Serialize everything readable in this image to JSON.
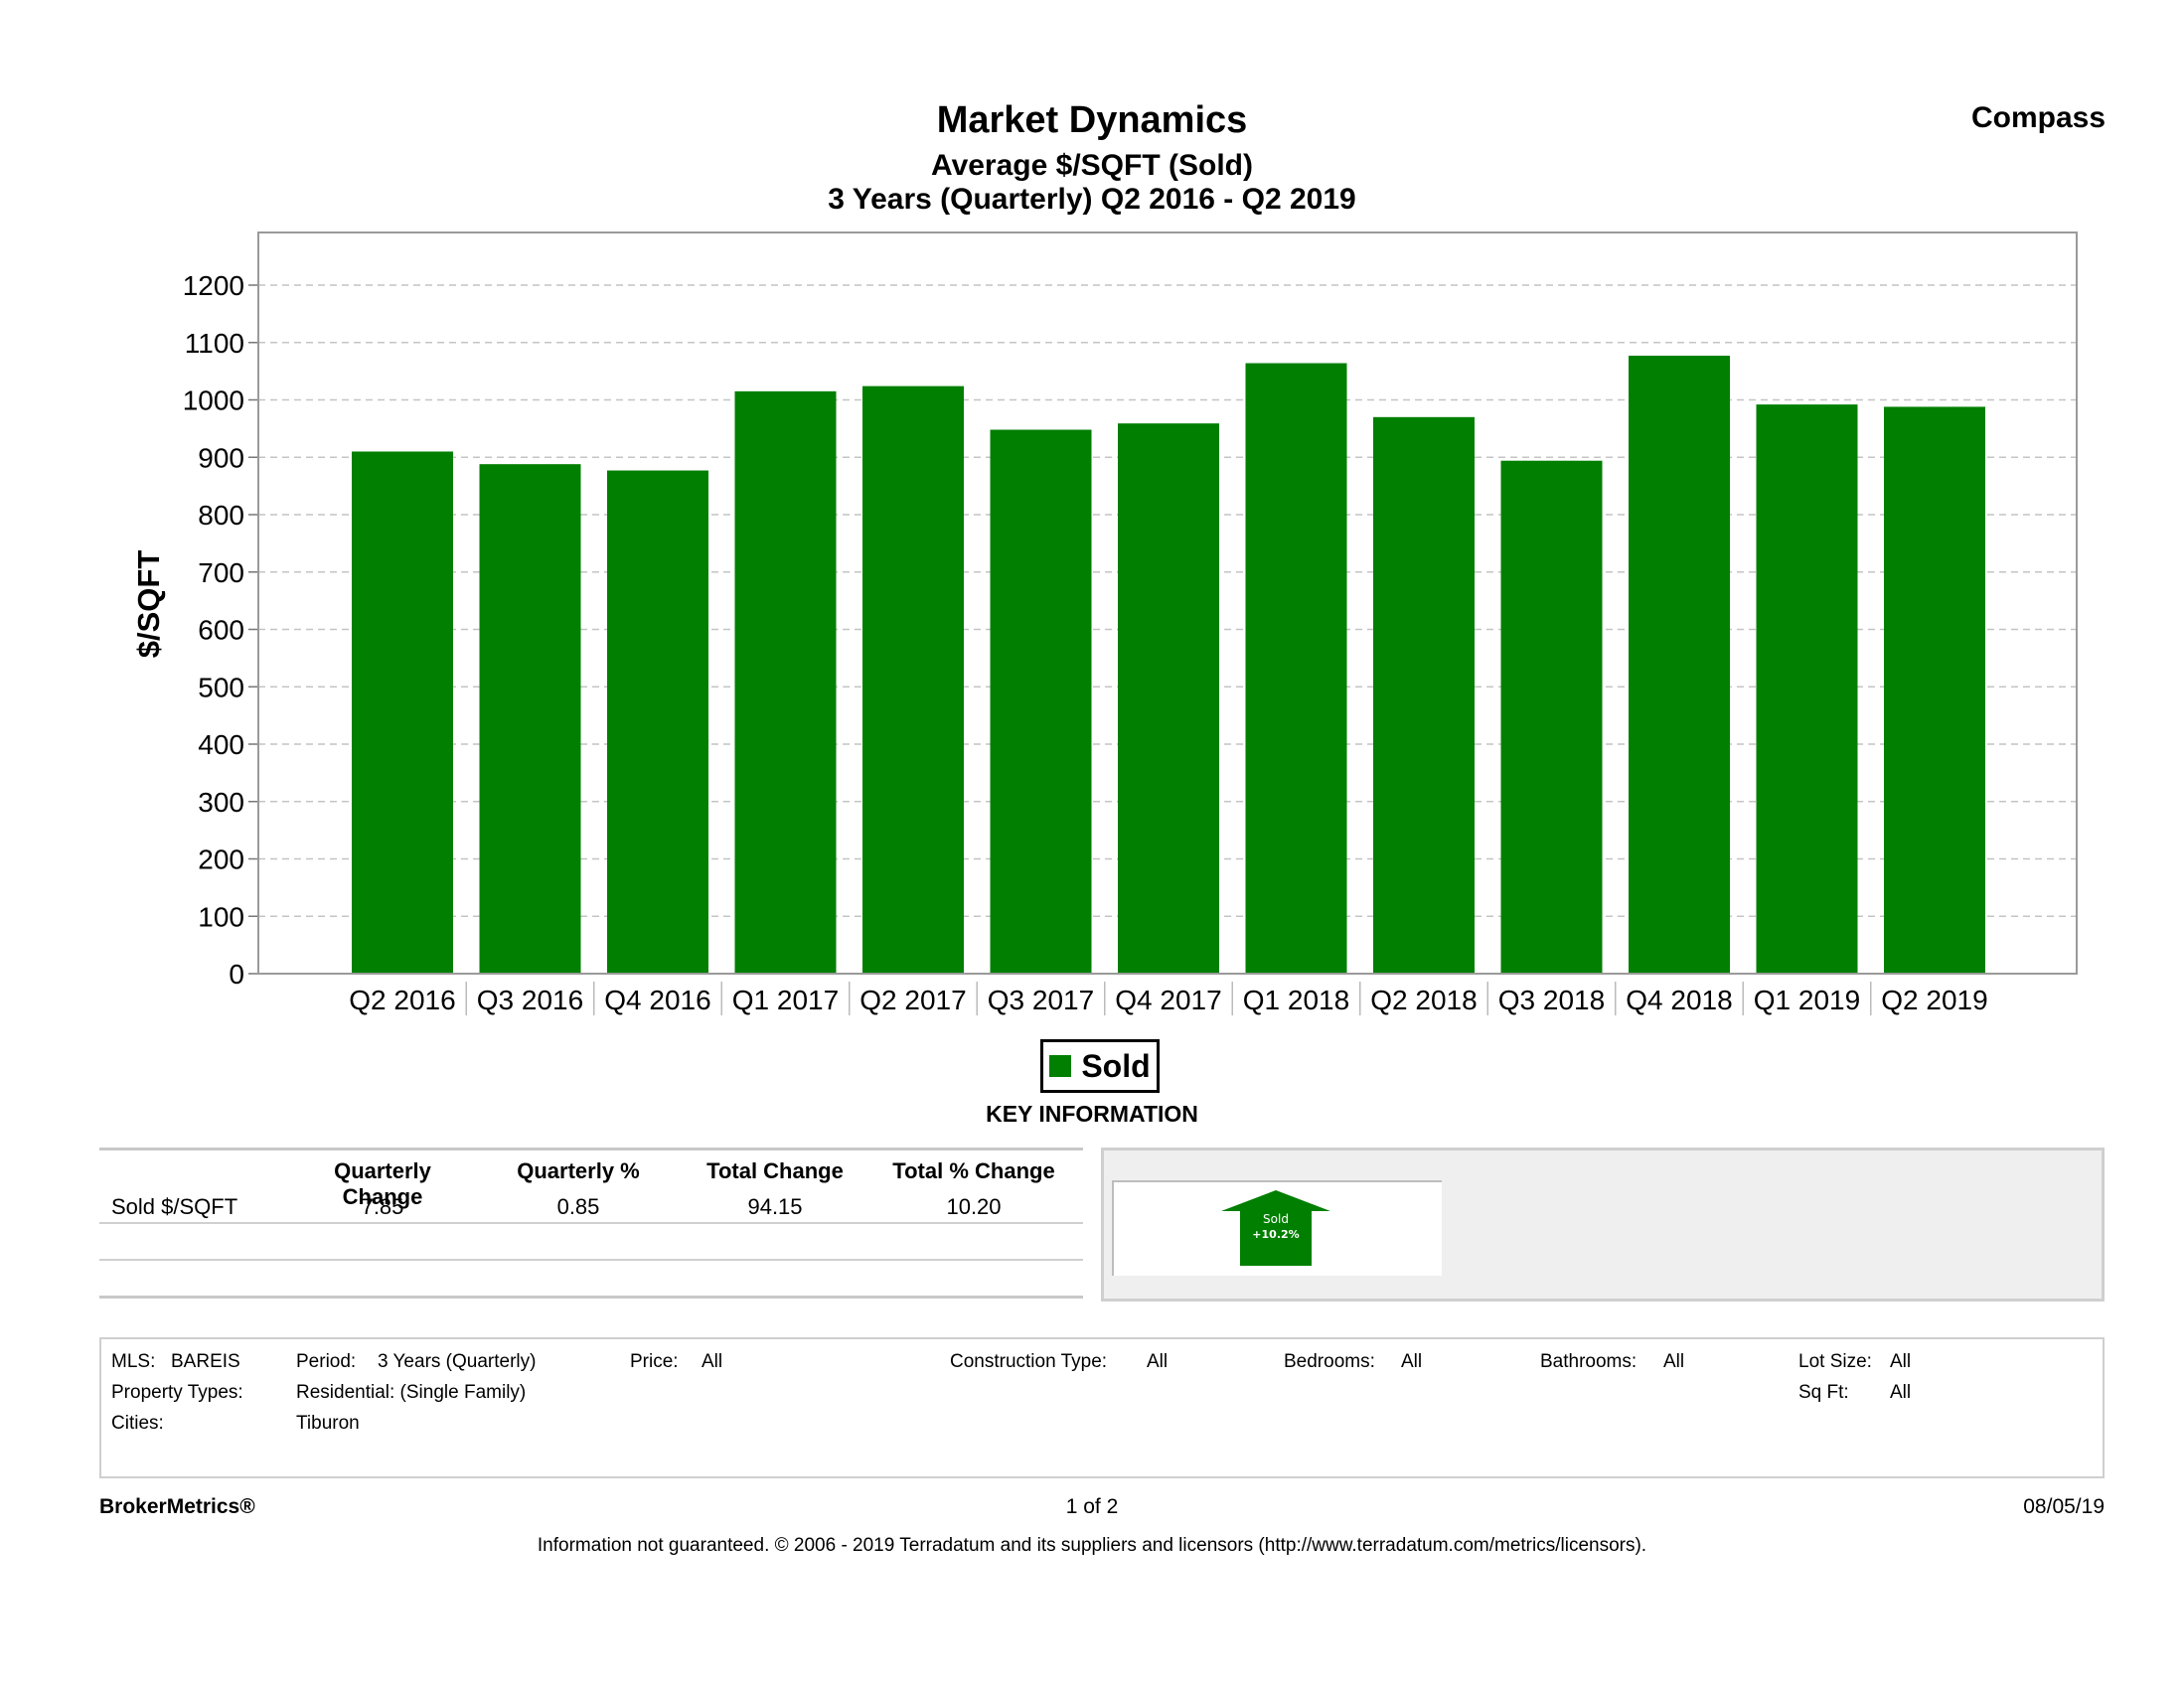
{
  "header": {
    "title": "Market Dynamics",
    "subtitle": "Average $/SQFT (Sold)",
    "period_line": "3 Years (Quarterly) Q2 2016 - Q2 2019",
    "brand": "Compass"
  },
  "chart_data": {
    "type": "bar",
    "title": "Market Dynamics",
    "subtitle": "Average $/SQFT (Sold)",
    "ylabel": "$/SQFT",
    "xlabel": "",
    "ylim": [
      0,
      1200
    ],
    "yticks": [
      0,
      100,
      200,
      300,
      400,
      500,
      600,
      700,
      800,
      900,
      1000,
      1100,
      1200
    ],
    "grid": true,
    "legend_position": "bottom-center",
    "categories": [
      "Q2 2016",
      "Q3 2016",
      "Q4 2016",
      "Q1 2017",
      "Q2 2017",
      "Q3 2017",
      "Q4 2017",
      "Q1 2018",
      "Q2 2018",
      "Q3 2018",
      "Q4 2018",
      "Q1 2019",
      "Q2 2019"
    ],
    "series": [
      {
        "name": "Sold",
        "color": "#007f00",
        "values": [
          910,
          888,
          877,
          1015,
          1024,
          948,
          959,
          1064,
          970,
          894,
          1077,
          992,
          988
        ]
      }
    ]
  },
  "legend": {
    "label": "Sold",
    "color": "#007f00"
  },
  "key_info": {
    "heading": "KEY INFORMATION",
    "columns": [
      "Quarterly Change",
      "Quarterly %",
      "Total Change",
      "Total % Change"
    ],
    "rows": [
      {
        "label": "Sold $/SQFT",
        "values": [
          "7.85",
          "0.85",
          "94.15",
          "10.20"
        ]
      }
    ],
    "arrow": {
      "label": "Sold",
      "value": "+10.2%",
      "direction": "up",
      "color": "#007f00"
    }
  },
  "filters": {
    "mls_label": "MLS:",
    "mls_value": "BAREIS",
    "period_label": "Period:",
    "period_value": "3 Years (Quarterly)",
    "price_label": "Price:",
    "price_value": "All",
    "construction_label": "Construction Type:",
    "construction_value": "All",
    "bedrooms_label": "Bedrooms:",
    "bedrooms_value": "All",
    "bathrooms_label": "Bathrooms:",
    "bathrooms_value": "All",
    "lot_label": "Lot Size:",
    "lot_value": "All",
    "property_label": "Property Types:",
    "property_value": "Residential: (Single Family)",
    "sqft_label": "Sq Ft:",
    "sqft_value": "All",
    "cities_label": "Cities:",
    "cities_value": "Tiburon"
  },
  "footer": {
    "left": "BrokerMetrics®",
    "page": "1 of 2",
    "date": "08/05/19",
    "disclaimer": "Information not guaranteed.  © 2006 - 2019 Terradatum and its suppliers and licensors (http://www.terradatum.com/metrics/licensors)."
  }
}
